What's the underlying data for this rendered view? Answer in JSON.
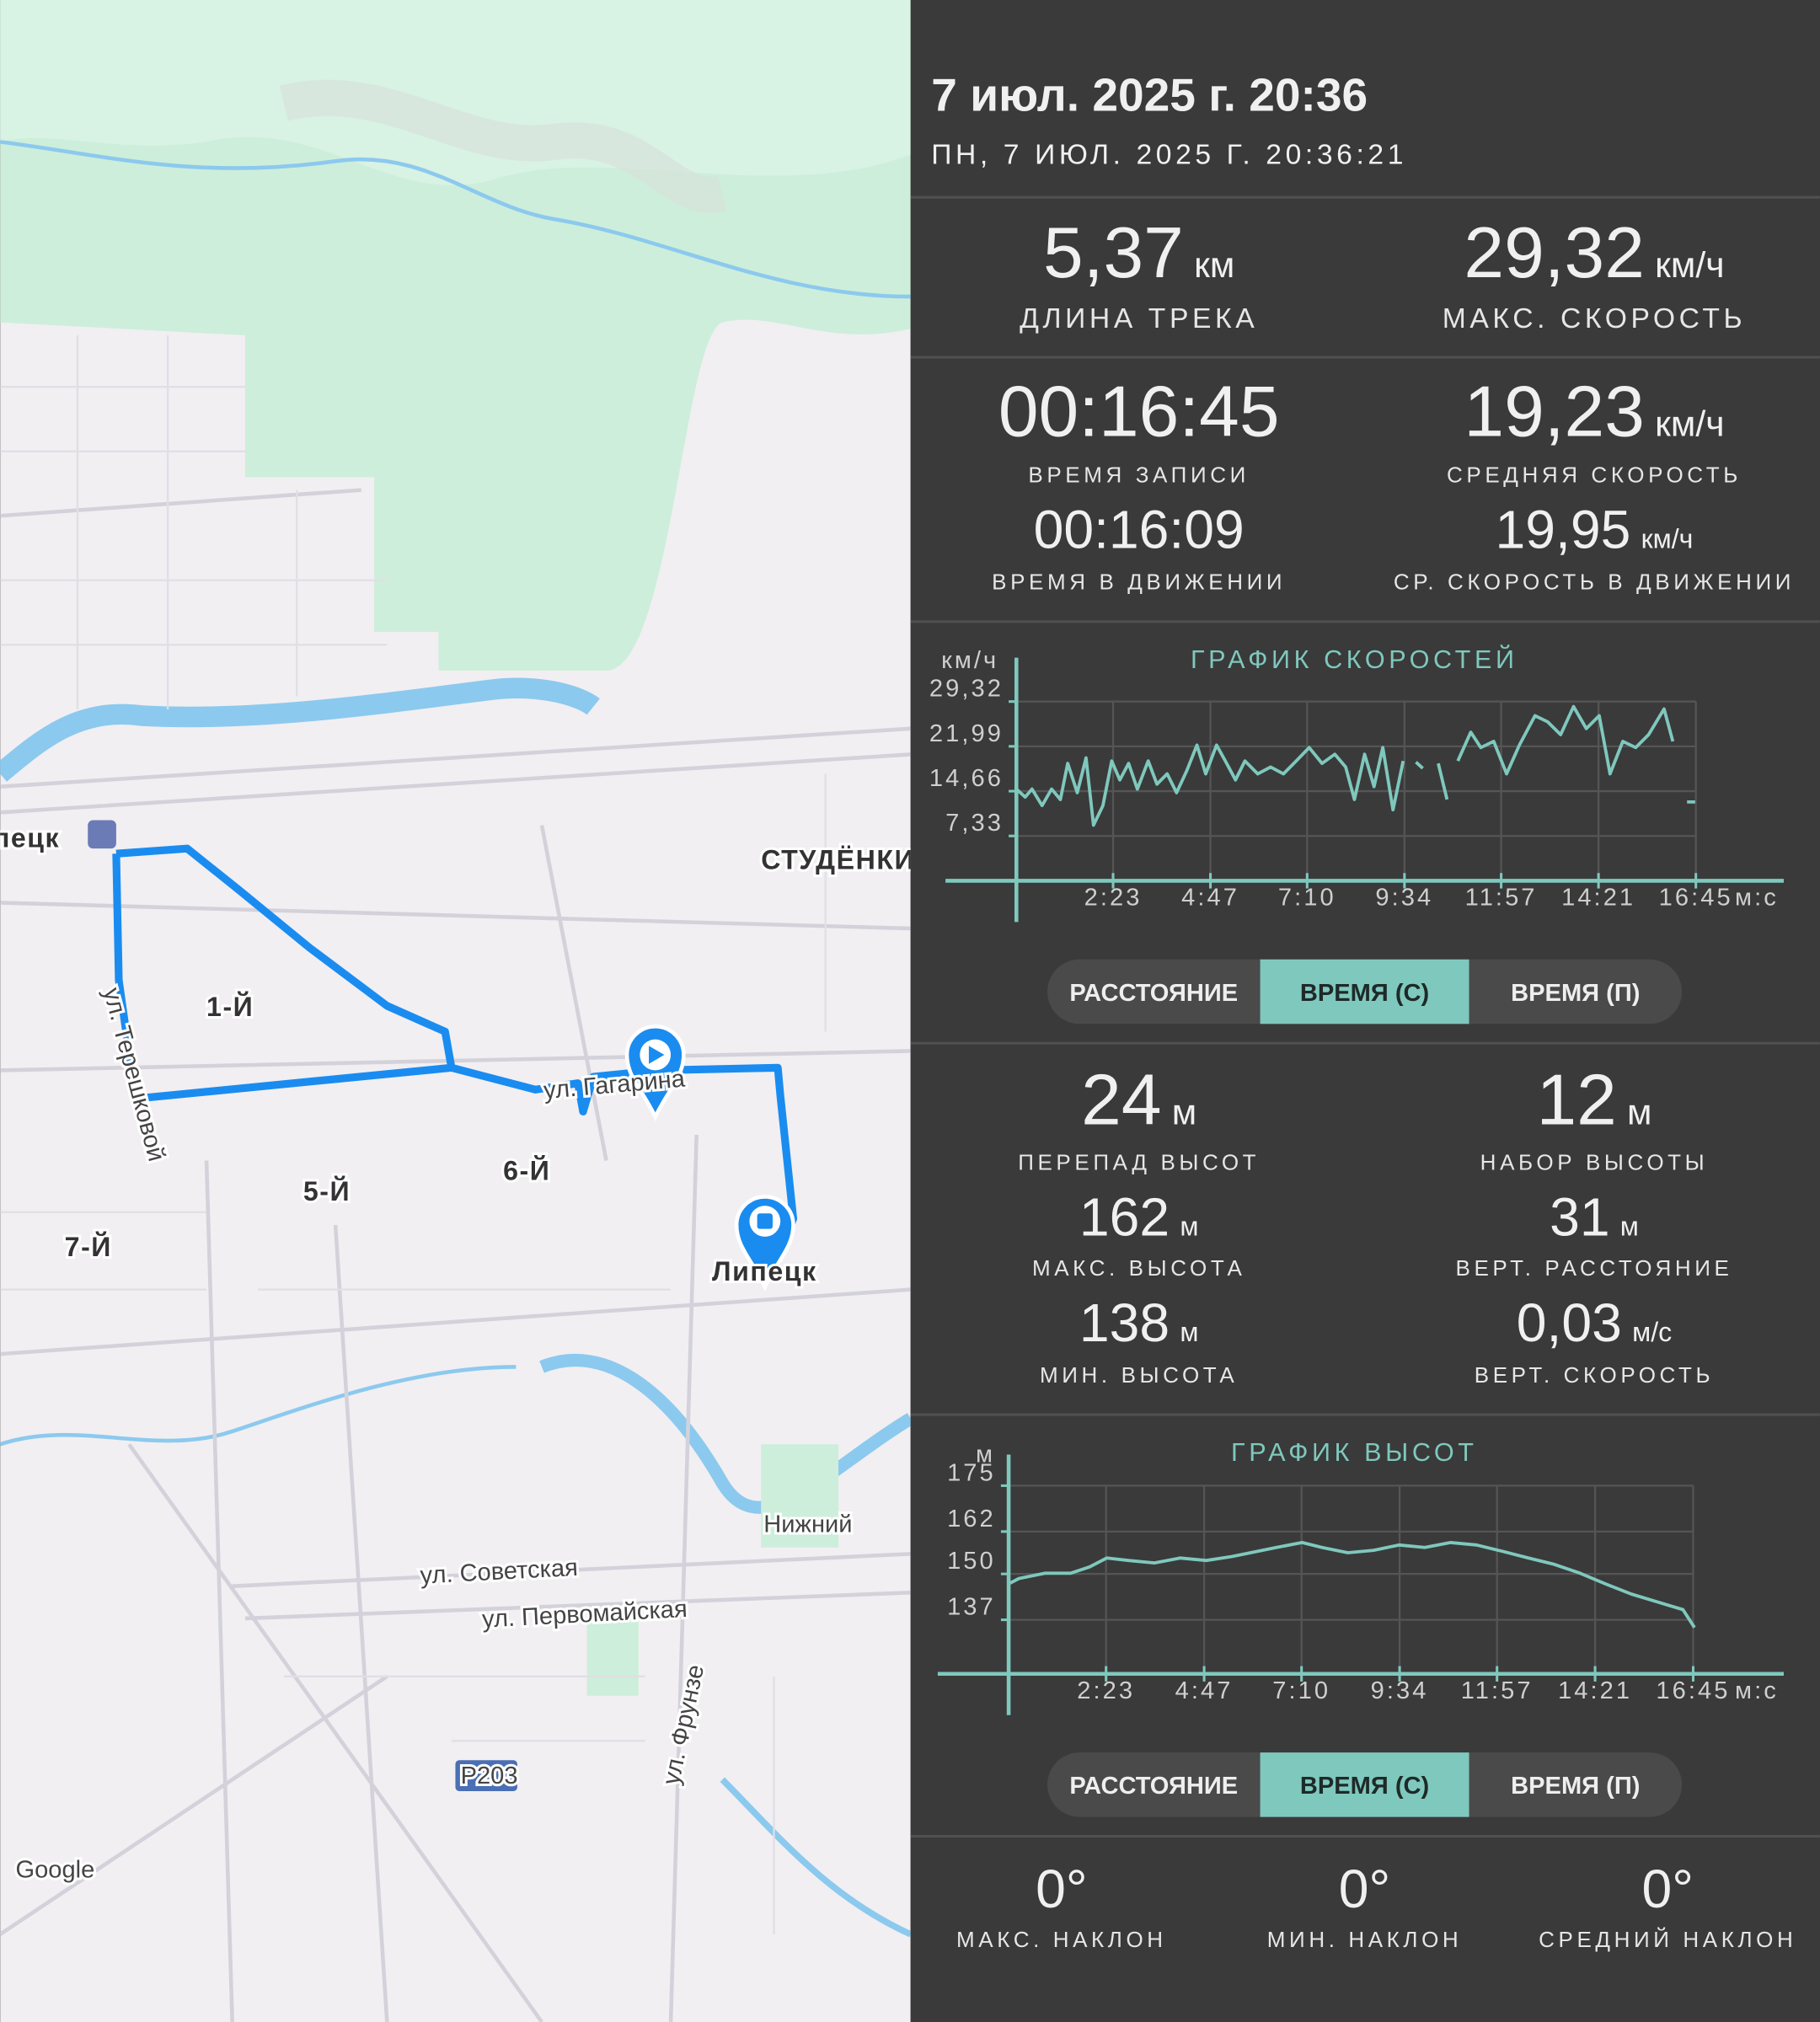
{
  "map": {
    "labels": [
      "Липецк",
      "СТУДЁНКИ",
      "1-Й",
      "5-Й",
      "6-Й",
      "7-Й",
      "ул. Терешковой",
      "ул. Гагарина",
      "Липецк",
      "Нижний",
      "ул. Советская",
      "ул. Первомайская",
      "ул. Фрунзе",
      "P203",
      "Google"
    ]
  },
  "header": {
    "title": "7 июл. 2025 г. 20:36",
    "subtitle": "ПН, 7 ИЮЛ. 2025 Г. 20:36:21"
  },
  "stats": [
    {
      "value": "5,37",
      "unit": "км",
      "label": "ДЛИНА ТРЕКА"
    },
    {
      "value": "29,32",
      "unit": "км/ч",
      "label": "МАКС. СКОРОСТЬ"
    },
    {
      "value": "00:16:45",
      "label": "ВРЕМЯ ЗАПИСИ"
    },
    {
      "value": "19,23",
      "unit": "км/ч",
      "label": "СРЕДНЯЯ СКОРОСТЬ"
    },
    {
      "value": "00:16:09",
      "label": "ВРЕМЯ В ДВИЖЕНИИ"
    },
    {
      "value": "19,95",
      "unit": "км/ч",
      "label": "СР. СКОРОСТЬ В ДВИЖЕНИИ"
    },
    {
      "value": "24",
      "unit": "м",
      "label": "ПЕРЕПАД ВЫСОТ"
    },
    {
      "value": "12",
      "unit": "м",
      "label": "НАБОР ВЫСОТЫ"
    },
    {
      "value": "162",
      "unit": "м",
      "label": "МАКС. ВЫСОТА"
    },
    {
      "value": "31",
      "unit": "м",
      "label": "ВЕРТ. РАССТОЯНИЕ"
    },
    {
      "value": "138",
      "unit": "м",
      "label": "МИН. ВЫСОТА"
    },
    {
      "value": "0,03",
      "unit": "м/с",
      "label": "ВЕРТ. СКОРОСТЬ"
    }
  ],
  "chart_data": [
    {
      "type": "line",
      "title": "ГРАФИК СКОРОСТЕЙ",
      "y_label": "км/ч",
      "x_label": "м:с",
      "color": "#7fc8bd",
      "grid": true,
      "xlim": [
        0,
        1135
      ],
      "ylim": [
        0,
        36.5
      ],
      "xticks": [
        {
          "value": 143,
          "label": "2:23"
        },
        {
          "value": 287,
          "label": "4:47"
        },
        {
          "value": 430,
          "label": "7:10"
        },
        {
          "value": 574,
          "label": "9:34"
        },
        {
          "value": 717,
          "label": "11:57"
        },
        {
          "value": 861,
          "label": "14:21"
        },
        {
          "value": 1005,
          "label": "16:45"
        }
      ],
      "yticks": [
        {
          "value": 7.33,
          "label": "7,33"
        },
        {
          "value": 14.66,
          "label": "14,66"
        },
        {
          "value": 21.99,
          "label": "21,99"
        },
        {
          "value": 29.32,
          "label": "29,32"
        }
      ],
      "x": [
        0,
        13,
        23,
        38,
        52,
        65,
        76,
        90,
        103,
        114,
        128,
        141,
        153,
        166,
        179,
        195,
        208,
        223,
        237,
        252,
        267,
        280,
        296,
        309,
        324,
        338,
        357,
        376,
        395,
        414,
        433,
        452,
        471,
        487,
        500,
        515,
        529,
        542,
        557,
        572,
        580,
        591,
        601,
        610,
        624,
        637,
        645,
        653,
        672,
        687,
        706,
        725,
        744,
        767,
        786,
        805,
        824,
        843,
        862,
        878,
        897,
        916,
        935,
        958,
        971,
        980,
        992,
        1004
      ],
      "values": [
        15.0,
        13.7,
        15.0,
        12.3,
        15.0,
        13.3,
        19.2,
        14.4,
        20.1,
        9.1,
        12.3,
        19.6,
        16.5,
        19.2,
        15.0,
        19.6,
        15.8,
        17.5,
        14.4,
        18.0,
        22.2,
        17.5,
        22.2,
        19.6,
        16.5,
        19.6,
        17.5,
        18.6,
        17.5,
        19.6,
        21.8,
        19.2,
        20.7,
        18.6,
        13.3,
        20.7,
        15.4,
        21.8,
        11.6,
        19.6,
        null,
        19.4,
        18.4,
        null,
        19.2,
        13.3,
        null,
        19.6,
        24.3,
        21.8,
        22.8,
        17.5,
        22.2,
        27.0,
        26.0,
        23.9,
        28.5,
        24.9,
        27.0,
        17.5,
        22.8,
        21.8,
        23.9,
        28.1,
        22.8,
        null,
        12.9,
        12.9
      ]
    },
    {
      "type": "line",
      "title": "ГРАФИК ВЫСОТ",
      "y_label": "м",
      "x_label": "м:с",
      "color": "#7fc8bd",
      "grid": true,
      "xlim": [
        0,
        1138
      ],
      "ylim": [
        121.7,
        183.8
      ],
      "xticks": [
        {
          "value": 143,
          "label": "2:23"
        },
        {
          "value": 287,
          "label": "4:47"
        },
        {
          "value": 430,
          "label": "7:10"
        },
        {
          "value": 574,
          "label": "9:34"
        },
        {
          "value": 717,
          "label": "11:57"
        },
        {
          "value": 861,
          "label": "14:21"
        },
        {
          "value": 1005,
          "label": "16:45"
        }
      ],
      "yticks": [
        137,
        150,
        162,
        175
      ],
      "x": [
        0,
        15,
        53,
        91,
        119,
        144,
        176,
        214,
        252,
        290,
        327,
        365,
        393,
        431,
        460,
        498,
        536,
        573,
        611,
        649,
        687,
        725,
        763,
        801,
        839,
        876,
        914,
        952,
        990,
        1007
      ],
      "values": [
        147.2,
        148.7,
        150.2,
        150.2,
        152.0,
        154.5,
        153.8,
        153.1,
        154.5,
        153.8,
        154.9,
        156.4,
        157.5,
        158.9,
        157.5,
        156.0,
        156.7,
        158.2,
        157.5,
        158.9,
        158.2,
        156.4,
        154.5,
        152.7,
        150.2,
        147.2,
        144.3,
        142.1,
        139.9,
        134.8
      ]
    }
  ],
  "toggles": [
    {
      "options": [
        "РАССТОЯНИЕ",
        "ВРЕМЯ (С)",
        "ВРЕМЯ (П)"
      ],
      "selected": 1
    },
    {
      "options": [
        "РАССТОЯНИЕ",
        "ВРЕМЯ (С)",
        "ВРЕМЯ (П)"
      ],
      "selected": 1
    }
  ],
  "slopes": [
    {
      "value": "0°",
      "label": "МАКС. НАКЛОН"
    },
    {
      "value": "0°",
      "label": "МИН. НАКЛОН"
    },
    {
      "value": "0°",
      "label": "СРЕДНИЙ НАКЛОН"
    }
  ]
}
